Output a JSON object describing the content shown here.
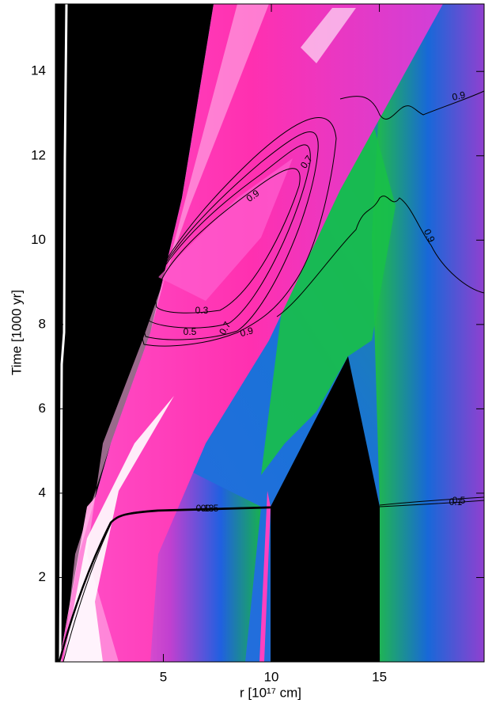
{
  "chart_data": {
    "type": "contour",
    "xlabel": "r [10¹⁷ cm]",
    "ylabel": "Time [1000 yr]",
    "xlim": [
      0,
      19.85
    ],
    "ylim": [
      0,
      15.6
    ],
    "xticks": [
      5,
      10,
      15
    ],
    "yticks": [
      2,
      4,
      6,
      8,
      10,
      12,
      14
    ],
    "contour_levels": [
      0.1,
      0.3,
      0.5,
      0.7,
      0.9
    ],
    "contour_color": "#000000"
  }
}
